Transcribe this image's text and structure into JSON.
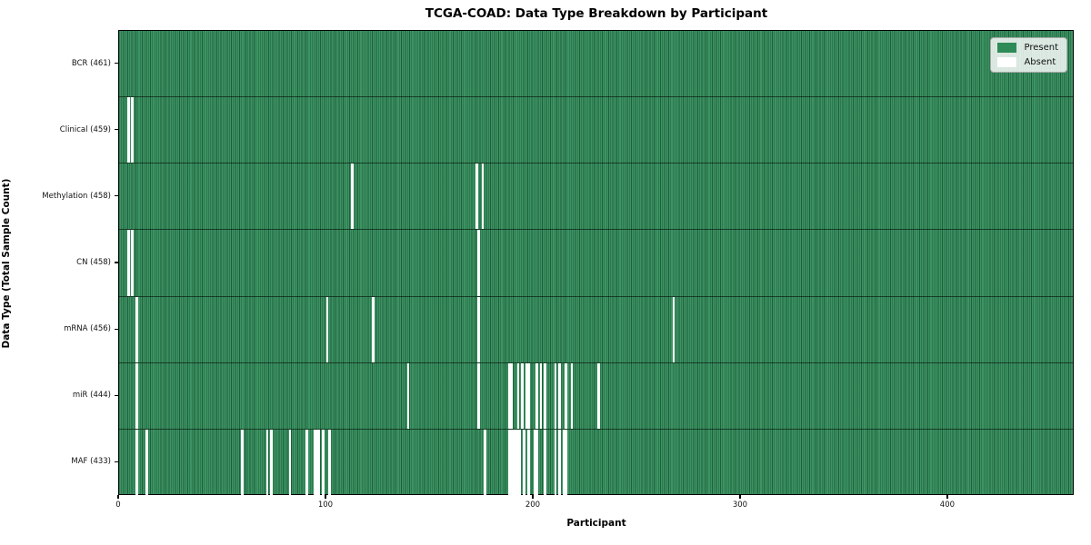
{
  "title": "TCGA-COAD: Data Type Breakdown by Participant",
  "legend": {
    "items": [
      {
        "label": "Present",
        "color": "#2e8b57"
      },
      {
        "label": "Absent",
        "color": "#ffffff"
      }
    ]
  },
  "chart_data": {
    "type": "heatmap",
    "title": "TCGA-COAD: Data Type Breakdown by Participant",
    "xlabel": "Participant",
    "ylabel": "Data Type (Total Sample Count)",
    "x_range": [
      0,
      461
    ],
    "x_ticks": [
      0,
      100,
      200,
      300,
      400
    ],
    "grid": false,
    "legend_position": "upper right",
    "legend_entries": [
      "Present",
      "Absent"
    ],
    "colors": {
      "present": "#2e8b57",
      "absent": "#ffffff"
    },
    "total_participants": 461,
    "rows": [
      {
        "key": "bcr",
        "label": "BCR (461)",
        "data_type": "BCR",
        "count": 461,
        "absent_participants": []
      },
      {
        "key": "clinical",
        "label": "Clinical (459)",
        "data_type": "Clinical",
        "count": 459,
        "absent_participants": [
          4,
          6
        ]
      },
      {
        "key": "methylation",
        "label": "Methylation (458)",
        "data_type": "Methylation",
        "count": 458,
        "absent_participants": [
          112,
          172,
          175
        ]
      },
      {
        "key": "cn",
        "label": "CN (458)",
        "data_type": "CN",
        "count": 458,
        "absent_participants": [
          4,
          6,
          173
        ]
      },
      {
        "key": "mrna",
        "label": "mRNA (456)",
        "data_type": "mRNA",
        "count": 456,
        "absent_participants": [
          8,
          100,
          122,
          173,
          267
        ]
      },
      {
        "key": "mir",
        "label": "miR (444)",
        "data_type": "miR",
        "count": 444,
        "absent_participants": [
          8,
          139,
          173,
          188,
          189,
          192,
          194,
          196,
          197,
          201,
          203,
          205,
          210,
          212,
          215,
          218,
          231
        ]
      },
      {
        "key": "maf",
        "label": "MAF (433)",
        "data_type": "MAF",
        "count": 433,
        "absent_participants": [
          8,
          13,
          59,
          71,
          73,
          82,
          90,
          94,
          95,
          96,
          98,
          101,
          176,
          188,
          189,
          190,
          191,
          192,
          193,
          195,
          197,
          200,
          201,
          205,
          210,
          212,
          214,
          215
        ]
      }
    ]
  }
}
